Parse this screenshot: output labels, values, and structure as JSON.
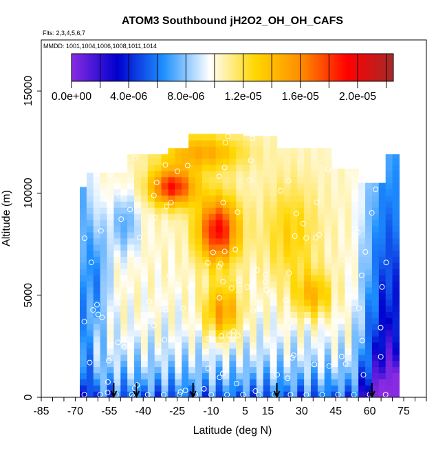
{
  "chart_data": {
    "type": "heatmap",
    "title": "ATOM3 Southbound jH2O2_OH_OH_CAFS",
    "flights_note": "Flts: 2,3,4,5,6,7",
    "dates_note": "MMDD: 1001,1004,1006,1008,1011,1014",
    "xlabel": "Latitude (deg N)",
    "ylabel": "Altitude (m)",
    "xlim": [
      -85,
      85
    ],
    "ylim": [
      0,
      17500
    ],
    "x_tick_labels": [
      "-85",
      "-70",
      "-55",
      "-40",
      "-25",
      "-10",
      "5",
      "15",
      "30",
      "45",
      "60",
      "75"
    ],
    "x_tick_values": [
      -85,
      -70,
      -55,
      -40,
      -25,
      -10,
      5,
      15,
      30,
      45,
      60,
      75
    ],
    "y_tick_labels": [
      "0",
      "5000",
      "10000",
      "15000"
    ],
    "y_tick_values": [
      0,
      5000,
      10000,
      15000
    ],
    "colorbar": {
      "min": 0,
      "max": 2.25e-05,
      "tick_labels": [
        "0.0e+00",
        "4.0e-06",
        "8.0e-06",
        "1.2e-05",
        "1.6e-05",
        "2.0e-05"
      ],
      "tick_values": [
        0,
        4e-06,
        8e-06,
        1.2e-05,
        1.6e-05,
        2e-05
      ],
      "colors": [
        "#8a2be2",
        "#0000cd",
        "#1e90ff",
        "#ffffff",
        "#ffd700",
        "#ff8c00",
        "#ff0000",
        "#a52a2a"
      ]
    },
    "arrow_latitudes": [
      -53,
      -43,
      -18,
      19,
      61
    ],
    "field": {
      "lat_range": [
        -68,
        72
      ],
      "alt_max": 13000,
      "note": "jH2O2 heat field approximated: low (blue) near poles, high (yellow-red) in tropics/mid-latitudes aloft"
    }
  }
}
